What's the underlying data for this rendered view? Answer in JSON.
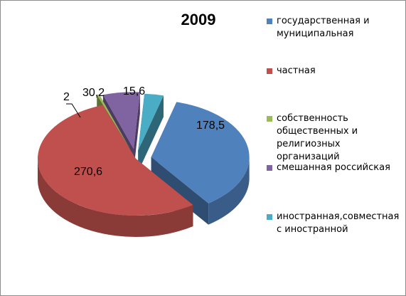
{
  "chart_data": {
    "type": "pie",
    "title": "2009",
    "categories": [
      "государственная и муниципальная",
      "частная",
      "собственность общественных и религиозных организаций",
      "смешанная российская",
      "иностранная,совместная с иностранной"
    ],
    "values": [
      178.5,
      270.6,
      2,
      30.2,
      15.6
    ],
    "value_labels": [
      "178,5",
      "270,6",
      "2",
      "30,2",
      "15,6"
    ],
    "colors": [
      "#4f81bd",
      "#c0504d",
      "#9bbb59",
      "#8064a2",
      "#4bacc6"
    ],
    "style": "3d-exploded",
    "legend_position": "right"
  }
}
